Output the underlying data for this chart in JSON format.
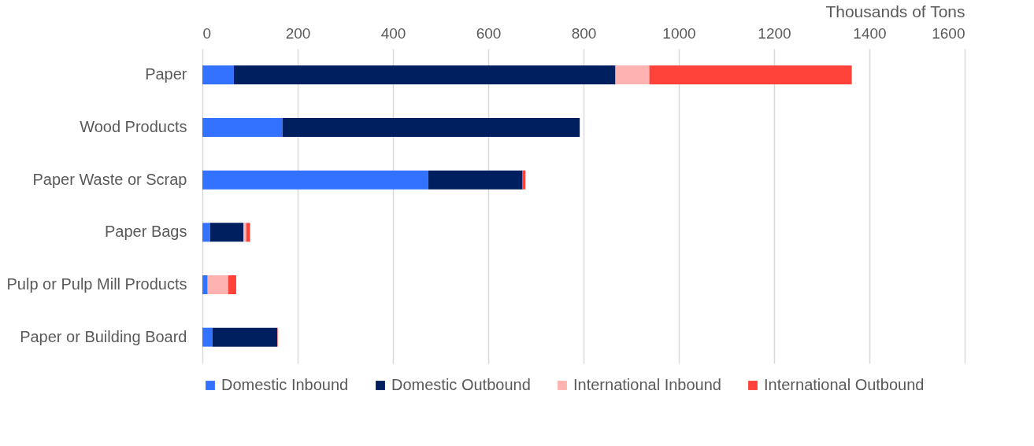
{
  "chart_data": {
    "type": "bar",
    "orientation": "horizontal",
    "stacked": true,
    "xlabel": "Thousands of Tons",
    "categories": [
      "Paper",
      "Wood Products",
      "Paper Waste or Scrap",
      "Paper Bags",
      "Pulp or Pulp Mill Products",
      "Paper or Building Board"
    ],
    "series": [
      {
        "name": "Domestic Inbound",
        "color": "#3371ff",
        "values": [
          66,
          168,
          474,
          16,
          11,
          21
        ]
      },
      {
        "name": "Domestic Outbound",
        "color": "#001f5f",
        "values": [
          801,
          624,
          198,
          70,
          0,
          136
        ]
      },
      {
        "name": "International Inbound",
        "color": "#ffb3b0",
        "values": [
          71,
          0,
          null,
          6,
          43,
          0
        ]
      },
      {
        "name": "International Outbound",
        "color": "#ff433a",
        "values": [
          425,
          0,
          6,
          8,
          17,
          1
        ]
      }
    ],
    "xlim": [
      0,
      1600
    ],
    "xticks": [
      0,
      200,
      400,
      600,
      800,
      1000,
      1200,
      1400,
      1600
    ],
    "grid": "x",
    "legend": "bottom"
  }
}
